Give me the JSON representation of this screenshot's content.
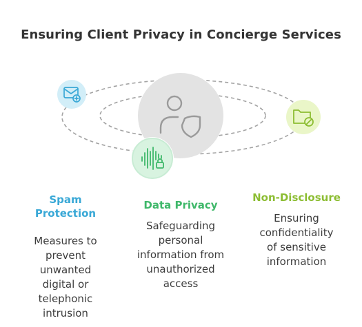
{
  "title": "Ensuring Client Privacy in Concierge Services",
  "colors": {
    "spam": "#39a8d6",
    "data": "#3fb86a",
    "nondisclosure": "#8cbd32",
    "center_circle": "#e2e2e2",
    "orbit": "#9e9e9e"
  },
  "nodes": {
    "center": {
      "icon": "user-shield-icon"
    },
    "spam": {
      "icon": "mail-plus-icon"
    },
    "data": {
      "icon": "soundwave-lock-icon"
    },
    "nondisclosure": {
      "icon": "folder-blocked-icon"
    }
  },
  "items": {
    "spam": {
      "label_line1": "Spam",
      "label_line2": "Protection",
      "desc_lines": [
        "Measures to",
        "prevent",
        "unwanted",
        "digital or",
        "telephonic",
        "intrusion"
      ]
    },
    "data": {
      "label": "Data Privacy",
      "desc_lines": [
        "Safeguarding",
        "personal",
        "information from",
        "unauthorized",
        "access"
      ]
    },
    "nondisclosure": {
      "label": "Non-Disclosure",
      "desc_lines": [
        "Ensuring",
        "confidentiality",
        "of sensitive",
        "information"
      ]
    }
  }
}
